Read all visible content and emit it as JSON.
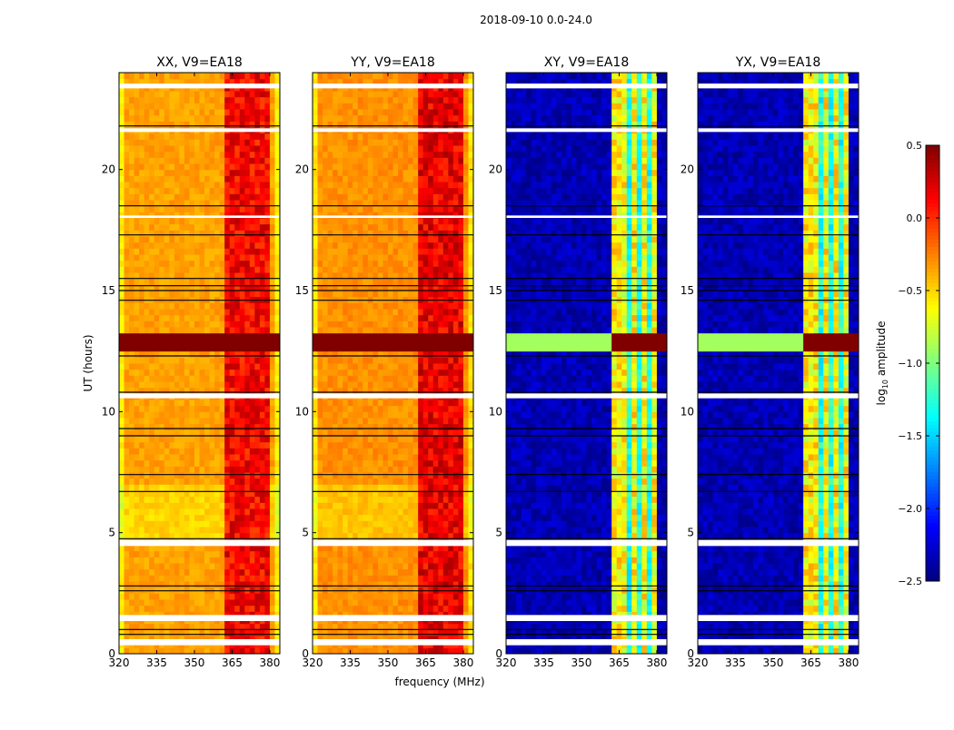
{
  "chart_data": {
    "type": "heatmap",
    "title": "2018-09-10 0.0-24.0",
    "xlabel": "frequency (MHz)",
    "ylabel": "UT (hours)",
    "xlim": [
      320,
      384
    ],
    "ylim": [
      0,
      24
    ],
    "xticks": [
      "320",
      "335",
      "350",
      "365",
      "380"
    ],
    "yticks": [
      "0",
      "5",
      "10",
      "15",
      "20"
    ],
    "colormap": "jet",
    "colorbar": {
      "label_prefix": "log",
      "label_sub": "10",
      "label_suffix": " amplitude",
      "range": [
        -2.5,
        0.5
      ],
      "ticks": [
        "0.5",
        "0.0",
        "−0.5",
        "−1.0",
        "−1.5",
        "−2.0",
        "−2.5"
      ]
    },
    "flagged_hours": [
      [
        0.35,
        0.6
      ],
      [
        1.35,
        1.6
      ],
      [
        4.45,
        4.7
      ],
      [
        10.55,
        10.75
      ],
      [
        18.0,
        18.1
      ],
      [
        21.55,
        21.7
      ],
      [
        23.35,
        23.55
      ]
    ],
    "rfi_hours": [
      [
        12.4,
        13.3
      ]
    ],
    "panels": [
      {
        "title": "XX, V9=EA18",
        "background": -0.35,
        "band_mhz": [
          362,
          380
        ],
        "band_value": 0.05,
        "rfi_value": 0.5
      },
      {
        "title": "YY, V9=EA18",
        "background": -0.3,
        "band_mhz": [
          362,
          380
        ],
        "band_value": 0.1,
        "rfi_value": 0.5
      },
      {
        "title": "XY, V9=EA18",
        "background": -2.35,
        "band_mhz": [
          363,
          380
        ],
        "band_value": -0.6,
        "rfi_value": 0.5
      },
      {
        "title": "YX, V9=EA18",
        "background": -2.35,
        "band_mhz": [
          363,
          380
        ],
        "band_value": -0.6,
        "rfi_value": 0.5
      }
    ]
  }
}
